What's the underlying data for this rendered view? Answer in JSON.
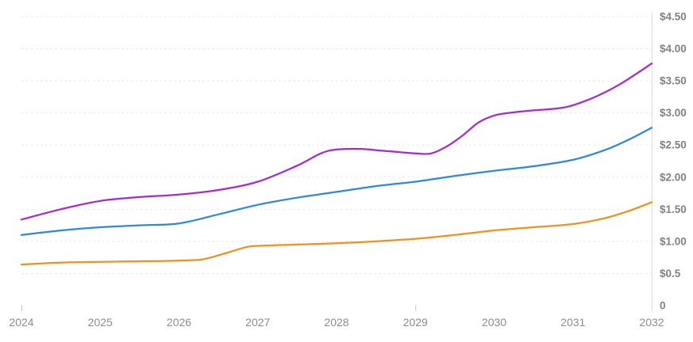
{
  "chart_data": {
    "type": "line",
    "title": "",
    "xlabel": "",
    "ylabel": "",
    "currency_prefix": "$",
    "xlim": [
      2024,
      2032
    ],
    "ylim": [
      0,
      4.5
    ],
    "grid": "horizontal-dashed",
    "legend_position": "none",
    "y_axis_side": "right",
    "x_tick_labels": [
      "2024",
      "2025",
      "2026",
      "2027",
      "2028",
      "2029",
      "2030",
      "2031",
      "2032"
    ],
    "x_major_tick_years": [
      2024,
      2029
    ],
    "y_tick_labels": [
      "$4.50",
      "$4.00",
      "$3.50",
      "$3.00",
      "$2.50",
      "$2.00",
      "$1.50",
      "$1.00",
      "$0.5",
      "0"
    ],
    "y_tick_values": [
      4.5,
      4.0,
      3.5,
      3.0,
      2.5,
      2.0,
      1.5,
      1.0,
      0.5,
      0
    ],
    "series": [
      {
        "name": "purple-series",
        "color": "#a62ad1",
        "values_at_years": [
          1.34,
          1.63,
          1.73,
          1.93,
          2.43,
          2.37,
          2.96,
          3.12,
          3.77
        ],
        "points": [
          [
            2024,
            1.34
          ],
          [
            2024.5,
            1.5
          ],
          [
            2025,
            1.63
          ],
          [
            2025.5,
            1.69
          ],
          [
            2026,
            1.73
          ],
          [
            2026.5,
            1.8
          ],
          [
            2027,
            1.93
          ],
          [
            2027.5,
            2.18
          ],
          [
            2027.8,
            2.37
          ],
          [
            2028,
            2.43
          ],
          [
            2028.3,
            2.44
          ],
          [
            2028.6,
            2.41
          ],
          [
            2029,
            2.37
          ],
          [
            2029.2,
            2.37
          ],
          [
            2029.4,
            2.48
          ],
          [
            2029.6,
            2.65
          ],
          [
            2029.8,
            2.85
          ],
          [
            2030,
            2.96
          ],
          [
            2030.25,
            3.01
          ],
          [
            2030.5,
            3.04
          ],
          [
            2030.8,
            3.07
          ],
          [
            2031,
            3.12
          ],
          [
            2031.3,
            3.26
          ],
          [
            2031.6,
            3.45
          ],
          [
            2032,
            3.77
          ]
        ]
      },
      {
        "name": "blue-series",
        "color": "#2f87de",
        "values_at_years": [
          1.1,
          1.22,
          1.28,
          1.57,
          1.77,
          1.93,
          2.1,
          2.27,
          2.77
        ],
        "points": [
          [
            2024,
            1.1
          ],
          [
            2024.5,
            1.17
          ],
          [
            2025,
            1.22
          ],
          [
            2025.5,
            1.25
          ],
          [
            2026,
            1.28
          ],
          [
            2026.5,
            1.42
          ],
          [
            2027,
            1.57
          ],
          [
            2027.5,
            1.68
          ],
          [
            2028,
            1.77
          ],
          [
            2028.5,
            1.86
          ],
          [
            2029,
            1.93
          ],
          [
            2029.5,
            2.02
          ],
          [
            2030,
            2.1
          ],
          [
            2030.5,
            2.17
          ],
          [
            2031,
            2.27
          ],
          [
            2031.4,
            2.42
          ],
          [
            2031.7,
            2.58
          ],
          [
            2032,
            2.77
          ]
        ]
      },
      {
        "name": "orange-series",
        "color": "#f0901e",
        "values_at_years": [
          0.64,
          0.68,
          0.7,
          0.93,
          0.97,
          1.04,
          1.17,
          1.27,
          1.61
        ],
        "points": [
          [
            2024,
            0.64
          ],
          [
            2024.5,
            0.67
          ],
          [
            2025,
            0.68
          ],
          [
            2025.5,
            0.69
          ],
          [
            2026,
            0.7
          ],
          [
            2026.3,
            0.72
          ],
          [
            2026.55,
            0.8
          ],
          [
            2026.85,
            0.91
          ],
          [
            2027,
            0.93
          ],
          [
            2027.5,
            0.95
          ],
          [
            2028,
            0.97
          ],
          [
            2028.5,
            1.0
          ],
          [
            2029,
            1.04
          ],
          [
            2029.5,
            1.1
          ],
          [
            2030,
            1.17
          ],
          [
            2030.5,
            1.22
          ],
          [
            2031,
            1.27
          ],
          [
            2031.4,
            1.36
          ],
          [
            2031.7,
            1.47
          ],
          [
            2032,
            1.61
          ]
        ]
      }
    ],
    "colors": {
      "background": "#ffffff",
      "grid": "#ebebeb",
      "axis_line": "#dcdcdc",
      "tick": "#c6c6c6",
      "label": "#858585"
    }
  }
}
